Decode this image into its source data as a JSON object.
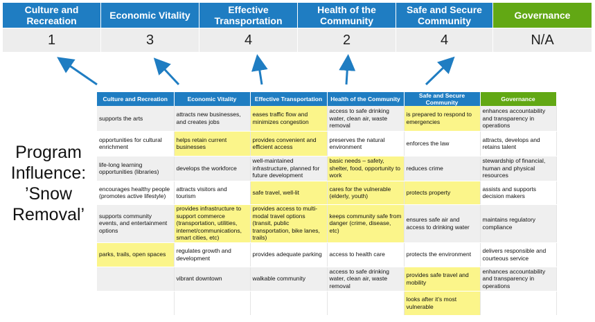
{
  "colors": {
    "header_blue": "#1f7dc2",
    "governance_green": "#62a814",
    "highlight": "#fbf58a"
  },
  "top": {
    "columns": [
      {
        "title": "Culture and Recreation",
        "score": "1"
      },
      {
        "title": "Economic Vitality",
        "score": "3"
      },
      {
        "title": "Effective Transportation",
        "score": "4"
      },
      {
        "title": "Health of the Community",
        "score": "2"
      },
      {
        "title": "Safe and Secure Community",
        "score": "4"
      },
      {
        "title": "Governance",
        "score": "N/A"
      }
    ]
  },
  "program_label": "Program Influence: ’Snow Removal’",
  "table": {
    "headers": [
      "Culture and Recreation",
      "Economic Vitality",
      "Effective Transportation",
      "Health of the Community",
      "Safe and Secure Community",
      "Governance"
    ],
    "rows": [
      {
        "cells": [
          "supports the arts",
          "attracts new businesses, and creates jobs",
          "eases traffic flow and minimizes congestion",
          "access to safe drinking water, clean air, waste removal",
          "is prepared to respond to emergencies",
          "enhances accountability and transparency in operations"
        ],
        "highlight": [
          false,
          false,
          true,
          false,
          true,
          false
        ]
      },
      {
        "cells": [
          "opportunities for cultural enrichment",
          "helps retain current businesses",
          "provides convenient and efficient access",
          "preserves the natural environment",
          "enforces the law",
          "attracts, develops and retains talent"
        ],
        "highlight": [
          false,
          true,
          true,
          false,
          false,
          false
        ]
      },
      {
        "cells": [
          "life-long learning opportunities (libraries)",
          "develops the workforce",
          "well-maintained infrastructure, planned for future development",
          "basic needs – safety, shelter, food, opportunity to work",
          "reduces crime",
          "stewardship of financial, human and physical resources"
        ],
        "highlight": [
          false,
          false,
          false,
          true,
          false,
          false
        ]
      },
      {
        "cells": [
          "encourages healthy people (promotes active lifestyle)",
          "attracts visitors and tourism",
          "safe travel, well-lit",
          "cares for the vulnerable (elderly, youth)",
          "protects property",
          "assists and supports decision makers"
        ],
        "highlight": [
          false,
          false,
          true,
          true,
          true,
          false
        ]
      },
      {
        "cells": [
          "supports community events, and entertainment options",
          "provides infrastructure to support commerce (transportation, utilities, internet/communications, smart cities, etc)",
          "provides access to multi-modal travel options (transit, public transportation, bike lanes, trails)",
          "keeps community safe from danger (crime, disease, etc)",
          "ensures safe air and access to drinking water",
          "maintains regulatory compliance"
        ],
        "highlight": [
          false,
          true,
          true,
          true,
          false,
          false
        ]
      },
      {
        "cells": [
          "parks, trails, open spaces",
          "regulates growth and development",
          "provides adequate parking",
          "access to health care",
          "protects the environment",
          "delivers responsible and courteous service"
        ],
        "highlight": [
          true,
          false,
          false,
          false,
          false,
          false
        ]
      },
      {
        "cells": [
          "",
          "vibrant downtown",
          "walkable community",
          "access to safe drinking water, clean air, waste removal",
          "provides safe travel and mobility",
          "enhances accountability and transparency in operations"
        ],
        "highlight": [
          false,
          false,
          false,
          false,
          true,
          false
        ]
      },
      {
        "cells": [
          "",
          "",
          "",
          "",
          "looks after it’s most vulnerable",
          ""
        ],
        "highlight": [
          false,
          false,
          false,
          false,
          true,
          false
        ]
      }
    ]
  }
}
